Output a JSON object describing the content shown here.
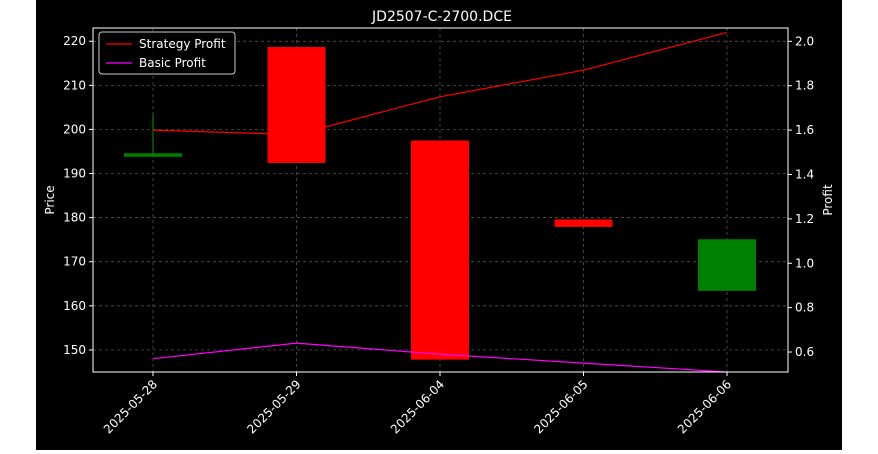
{
  "chart_data": {
    "type": "candlestick",
    "title": "JD2507-C-2700.DCE",
    "xlabel": "",
    "ylabel": "Price",
    "y2label": "Profit",
    "categories": [
      "2025-05-28",
      "2025-05-29",
      "2025-06-04",
      "2025-06-05",
      "2025-06-06"
    ],
    "ylim": [
      145,
      223
    ],
    "y2lim": [
      0.51,
      2.06
    ],
    "yticks": [
      150,
      160,
      170,
      180,
      190,
      200,
      210,
      220
    ],
    "y2ticks": [
      0.6,
      0.8,
      1.0,
      1.2,
      1.4,
      1.6,
      1.8,
      2.0
    ],
    "y2tick_labels": [
      "0.6",
      "0.8",
      "1.0",
      "1.2",
      "1.4",
      "1.6",
      "1.8",
      "2.0"
    ],
    "candles": [
      {
        "open": 193.8,
        "close": 194.6,
        "high": 203.5,
        "low": 193.8
      },
      {
        "open": 218.7,
        "close": 192.4,
        "high": 218.7,
        "low": 192.4
      },
      {
        "open": 197.5,
        "close": 147.8,
        "high": 197.5,
        "low": 147.8
      },
      {
        "open": 179.6,
        "close": 177.9,
        "high": 179.6,
        "low": 177.9
      },
      {
        "open": 163.4,
        "close": 175.1,
        "high": 175.1,
        "low": 163.4
      }
    ],
    "series": [
      {
        "name": "Strategy Profit",
        "axis": "right",
        "values": [
          1.6,
          1.58,
          1.75,
          1.87,
          2.04
        ]
      },
      {
        "name": "Basic Profit",
        "axis": "right",
        "values": [
          0.57,
          0.64,
          0.59,
          0.55,
          0.51
        ]
      }
    ],
    "colors": {
      "up": "#008000",
      "down": "#ff0000",
      "strategy": "#ff0000",
      "basic": "#ff00ff",
      "background": "#000000",
      "foreground": "#ffffff",
      "grid": "#888888"
    },
    "grid": true,
    "legend_position": "top-left"
  }
}
